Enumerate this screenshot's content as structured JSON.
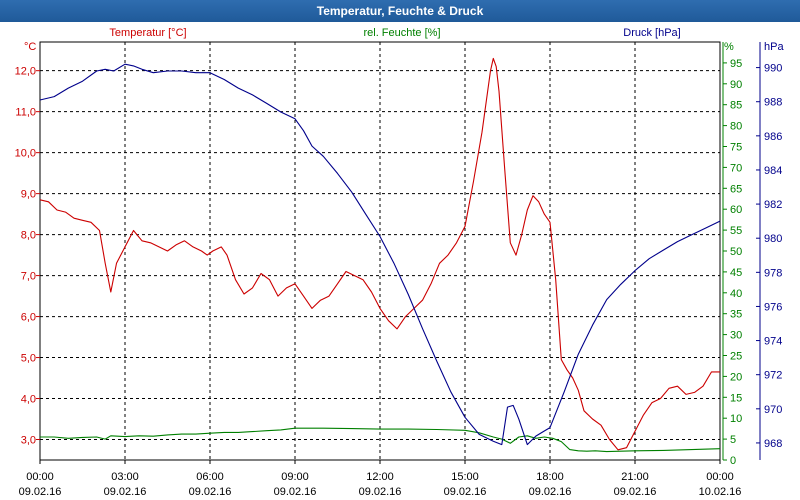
{
  "title": "Temperatur, Feuchte & Druck",
  "chart_data": {
    "type": "line",
    "xlabel": "",
    "x_range_hours": [
      0,
      24
    ],
    "x_ticks": [
      {
        "time": "00:00",
        "date": "09.02.16"
      },
      {
        "time": "03:00",
        "date": "09.02.16"
      },
      {
        "time": "06:00",
        "date": "09.02.16"
      },
      {
        "time": "09:00",
        "date": "09.02.16"
      },
      {
        "time": "12:00",
        "date": "09.02.16"
      },
      {
        "time": "15:00",
        "date": "09.02.16"
      },
      {
        "time": "18:00",
        "date": "09.02.16"
      },
      {
        "time": "21:00",
        "date": "09.02.16"
      },
      {
        "time": "00:00",
        "date": "10.02.16"
      }
    ],
    "axes": {
      "temperature": {
        "unit": "°C",
        "color": "#cc0000",
        "ylim": [
          2.5,
          12.7
        ],
        "ticks": [
          "3,0",
          "4,0",
          "5,0",
          "6,0",
          "7,0",
          "8,0",
          "9,0",
          "10,0",
          "11,0",
          "12,0"
        ]
      },
      "humidity": {
        "unit": "%",
        "color": "#008000",
        "ylim": [
          0,
          100
        ],
        "ticks": [
          "0",
          "5",
          "10",
          "15",
          "20",
          "25",
          "30",
          "35",
          "40",
          "45",
          "50",
          "55",
          "60",
          "65",
          "70",
          "75",
          "80",
          "85",
          "90",
          "95"
        ]
      },
      "pressure": {
        "unit": "hPa",
        "color": "#00008b",
        "ylim": [
          967.0,
          991.5
        ],
        "ticks": [
          "968",
          "970",
          "972",
          "974",
          "976",
          "978",
          "980",
          "982",
          "984",
          "986",
          "988",
          "990"
        ]
      }
    },
    "series": [
      {
        "name": "Temperatur [°C]",
        "axis": "temperature",
        "color": "#cc0000",
        "x": [
          0,
          0.3,
          0.6,
          0.9,
          1.2,
          1.5,
          1.8,
          2.1,
          2.3,
          2.5,
          2.7,
          3.0,
          3.3,
          3.6,
          3.9,
          4.2,
          4.5,
          4.8,
          5.1,
          5.4,
          5.7,
          5.9,
          6.1,
          6.4,
          6.6,
          6.9,
          7.2,
          7.5,
          7.8,
          8.1,
          8.4,
          8.7,
          9.0,
          9.3,
          9.6,
          9.9,
          10.2,
          10.5,
          10.8,
          11.1,
          11.4,
          11.7,
          12.0,
          12.3,
          12.6,
          12.9,
          13.2,
          13.5,
          13.8,
          14.1,
          14.4,
          14.7,
          15.0,
          15.3,
          15.6,
          15.9,
          16.0,
          16.1,
          16.2,
          16.4,
          16.6,
          16.8,
          17.0,
          17.2,
          17.4,
          17.6,
          17.8,
          18.0,
          18.2,
          18.4,
          18.6,
          18.8,
          19.0,
          19.2,
          19.5,
          19.8,
          20.1,
          20.4,
          20.7,
          21.0,
          21.3,
          21.6,
          21.9,
          22.2,
          22.5,
          22.8,
          23.1,
          23.4,
          23.7,
          24.0
        ],
        "values": [
          8.85,
          8.8,
          8.6,
          8.55,
          8.4,
          8.35,
          8.3,
          8.1,
          7.3,
          6.6,
          7.3,
          7.7,
          8.1,
          7.85,
          7.8,
          7.7,
          7.6,
          7.75,
          7.85,
          7.7,
          7.6,
          7.5,
          7.6,
          7.7,
          7.5,
          6.9,
          6.55,
          6.7,
          7.05,
          6.9,
          6.5,
          6.7,
          6.8,
          6.5,
          6.2,
          6.4,
          6.5,
          6.8,
          7.1,
          7.0,
          6.9,
          6.6,
          6.2,
          5.9,
          5.7,
          6.0,
          6.2,
          6.4,
          6.8,
          7.3,
          7.5,
          7.8,
          8.2,
          9.3,
          10.5,
          12.0,
          12.3,
          12.1,
          11.5,
          9.6,
          7.8,
          7.5,
          8.0,
          8.6,
          8.95,
          8.8,
          8.5,
          8.3,
          6.9,
          4.95,
          4.7,
          4.5,
          4.2,
          3.7,
          3.5,
          3.35,
          3.0,
          2.75,
          2.8,
          3.2,
          3.6,
          3.9,
          4.0,
          4.25,
          4.3,
          4.1,
          4.15,
          4.3,
          4.65,
          4.65
        ]
      },
      {
        "name": "rel. Feuchte [%]",
        "axis": "humidity",
        "color": "#008000",
        "x": [
          0,
          0.5,
          1.0,
          1.5,
          2.0,
          2.3,
          2.5,
          3.0,
          3.5,
          4.0,
          4.5,
          5.0,
          5.5,
          6.0,
          6.5,
          7.0,
          7.5,
          8.0,
          8.5,
          9.0,
          10.0,
          11.0,
          12.0,
          13.0,
          14.0,
          15.0,
          15.5,
          16.0,
          16.3,
          16.6,
          16.9,
          17.2,
          17.5,
          17.8,
          18.1,
          18.4,
          18.7,
          19.0,
          19.3,
          19.6,
          20.0,
          21.0,
          22.0,
          23.0,
          24.0
        ],
        "values": [
          5.5,
          5.5,
          5.2,
          5.4,
          5.5,
          5.0,
          5.8,
          5.6,
          5.8,
          5.7,
          6.0,
          6.2,
          6.2,
          6.4,
          6.6,
          6.6,
          6.8,
          7.0,
          7.2,
          7.6,
          7.6,
          7.5,
          7.4,
          7.4,
          7.3,
          7.1,
          6.5,
          5.5,
          5.0,
          4.0,
          5.5,
          5.8,
          5.2,
          5.5,
          5.2,
          4.4,
          2.5,
          2.2,
          2.1,
          2.2,
          2.0,
          2.2,
          2.3,
          2.5,
          2.7
        ]
      },
      {
        "name": "Druck [hPa]",
        "axis": "pressure",
        "color": "#00008b",
        "x": [
          0,
          0.5,
          1.0,
          1.5,
          2.0,
          2.3,
          2.6,
          3.0,
          3.3,
          3.6,
          4.0,
          4.5,
          5.0,
          5.5,
          6.0,
          6.5,
          7.0,
          7.5,
          8.0,
          8.5,
          9.0,
          9.3,
          9.6,
          10.0,
          10.5,
          11.0,
          11.5,
          12.0,
          12.5,
          13.0,
          13.5,
          14.0,
          14.5,
          15.0,
          15.5,
          16.0,
          16.3,
          16.5,
          16.7,
          16.9,
          17.2,
          17.5,
          17.8,
          18.0,
          18.5,
          19.0,
          19.5,
          20.0,
          20.5,
          21.0,
          21.5,
          22.0,
          22.5,
          23.0,
          23.5,
          24.0
        ],
        "values": [
          988.1,
          988.3,
          988.8,
          989.2,
          989.8,
          989.9,
          989.8,
          990.2,
          990.1,
          989.9,
          989.7,
          989.8,
          989.8,
          989.7,
          989.7,
          989.3,
          988.8,
          988.4,
          987.9,
          987.4,
          987.0,
          986.3,
          985.4,
          984.8,
          983.8,
          982.7,
          981.4,
          980.1,
          978.5,
          976.7,
          974.7,
          972.8,
          971.0,
          969.5,
          968.5,
          968.1,
          967.9,
          970.1,
          970.2,
          969.4,
          967.9,
          968.4,
          968.7,
          968.9,
          971.0,
          973.2,
          974.9,
          976.4,
          977.3,
          978.1,
          978.8,
          979.3,
          979.8,
          980.2,
          980.6,
          981.0
        ]
      }
    ],
    "legend": {
      "temperature": "Temperatur [°C]",
      "humidity": "rel. Feuchte [%]",
      "pressure": "Druck [hPa]"
    },
    "axis_unit_labels": {
      "temperature": "°C",
      "humidity": "%",
      "pressure": "hPa"
    },
    "grid": true
  }
}
